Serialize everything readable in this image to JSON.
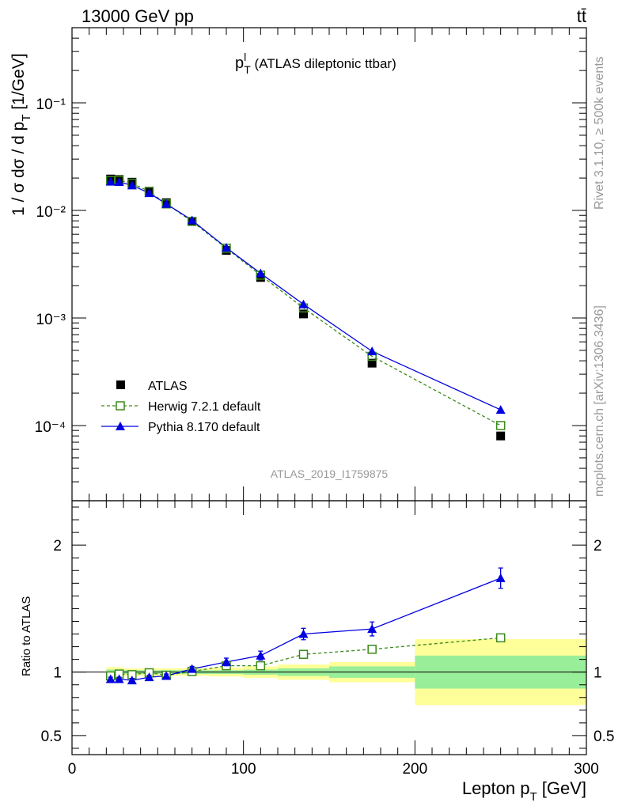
{
  "header": {
    "energy": "13000 GeV pp",
    "process": "tt̄"
  },
  "side": {
    "rivet": "Rivet 3.1.10, ≥ 500k events",
    "mcplots": "mcplots.cern.ch [arXiv:1306.3436]"
  },
  "analysis_id": "ATLAS_2019_I1759875",
  "main_panel": {
    "title_main": "p",
    "title_sup": "l",
    "title_sub": "T",
    "title_rest": " (ATLAS dileptonic ttbar)",
    "ylabel_pre": "1 / σ  dσ / d p",
    "ylabel_sub": "T",
    "ylabel_post": " [1/GeV]"
  },
  "ratio_panel": {
    "ylabel": "Ratio to ATLAS"
  },
  "xlabel_pre": "Lepton p",
  "xlabel_sub": "T",
  "xlabel_post": " [GeV]",
  "legend": {
    "atlas": "ATLAS",
    "herwig": "Herwig 7.2.1 default",
    "pythia": "Pythia 8.170 default"
  },
  "colors": {
    "data": "#000000",
    "herwig": "#3a8a1a",
    "pythia": "#0000e0",
    "band_inner": "#99ee99",
    "band_outer": "#ffff99"
  },
  "chart_data": {
    "type": "scatter",
    "xlim": [
      0,
      300
    ],
    "main_ylim": [
      2e-05,
      0.5
    ],
    "main_yscale": "log",
    "ratio_ylim": [
      0.35,
      2.35
    ],
    "x_ticks": [
      "0",
      "100",
      "200",
      "300"
    ],
    "main_y_ticks": [
      "10⁻⁴",
      "10⁻³",
      "10⁻²",
      "10⁻¹"
    ],
    "ratio_y_ticks": [
      "0.5",
      "1",
      "2"
    ],
    "bins": [
      [
        20,
        25
      ],
      [
        25,
        30
      ],
      [
        30,
        40
      ],
      [
        40,
        50
      ],
      [
        50,
        60
      ],
      [
        60,
        80
      ],
      [
        80,
        100
      ],
      [
        100,
        120
      ],
      [
        120,
        150
      ],
      [
        150,
        200
      ],
      [
        200,
        300
      ]
    ],
    "x": [
      22.5,
      27.5,
      35,
      45,
      55,
      70,
      90,
      110,
      135,
      175,
      250
    ],
    "series": [
      {
        "name": "ATLAS",
        "values": [
          0.0196,
          0.0194,
          0.0183,
          0.0151,
          0.0118,
          0.0079,
          0.00425,
          0.00238,
          0.00109,
          0.00038,
          8e-05
        ]
      },
      {
        "name": "Herwig 7.2.1 default",
        "values": [
          0.019,
          0.0191,
          0.0179,
          0.015,
          0.0115,
          0.0079,
          0.00445,
          0.0025,
          0.00124,
          0.00044,
          0.0001
        ],
        "ratio": [
          0.97,
          0.985,
          0.98,
          0.995,
          0.975,
          1.005,
          1.05,
          1.05,
          1.14,
          1.18,
          1.27
        ]
      },
      {
        "name": "Pythia 8.170 default",
        "values": [
          0.0185,
          0.0184,
          0.0171,
          0.0145,
          0.0115,
          0.0081,
          0.0045,
          0.0026,
          0.00134,
          0.00049,
          0.00014
        ],
        "ratio": [
          0.945,
          0.945,
          0.935,
          0.96,
          0.97,
          1.025,
          1.08,
          1.13,
          1.3,
          1.34,
          1.74
        ],
        "ratio_err": [
          0.015,
          0.015,
          0.015,
          0.015,
          0.015,
          0.02,
          0.03,
          0.035,
          0.045,
          0.055,
          0.08
        ]
      }
    ],
    "band_inner": [
      0.02,
      0.02,
      0.015,
      0.015,
      0.015,
      0.015,
      0.015,
      0.02,
      0.03,
      0.045,
      0.13
    ],
    "band_outer": [
      0.04,
      0.04,
      0.03,
      0.03,
      0.03,
      0.03,
      0.035,
      0.045,
      0.06,
      0.08,
      0.26
    ]
  }
}
